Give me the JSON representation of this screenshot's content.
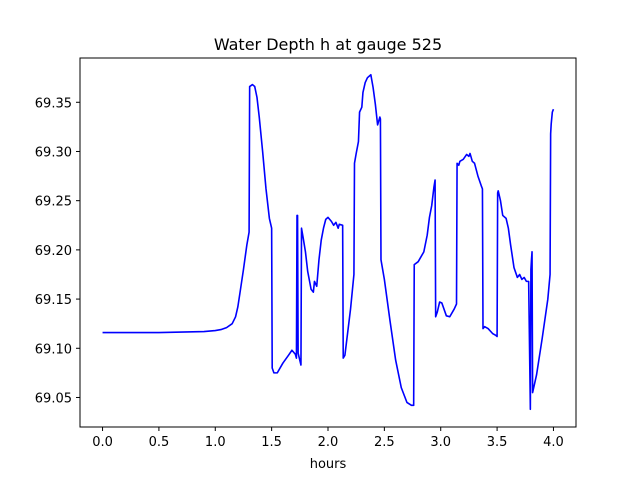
{
  "chart_data": {
    "type": "line",
    "title": "Water Depth h at gauge 525",
    "xlabel": "hours",
    "ylabel": "",
    "xlim": [
      -0.2,
      4.2
    ],
    "ylim": [
      69.02,
      69.395
    ],
    "xticks": [
      0.0,
      0.5,
      1.0,
      1.5,
      2.0,
      2.5,
      3.0,
      3.5,
      4.0
    ],
    "xtick_labels": [
      "0.0",
      "0.5",
      "1.0",
      "1.5",
      "2.0",
      "2.5",
      "3.0",
      "3.5",
      "4.0"
    ],
    "yticks": [
      69.05,
      69.1,
      69.15,
      69.2,
      69.25,
      69.3,
      69.35
    ],
    "ytick_labels": [
      "69.05",
      "69.10",
      "69.15",
      "69.20",
      "69.25",
      "69.30",
      "69.35"
    ],
    "grid": false,
    "legend": "none",
    "series": [
      {
        "color": "#0000ff",
        "points": [
          [
            0.0,
            69.116
          ],
          [
            0.5,
            69.116
          ],
          [
            0.9,
            69.117
          ],
          [
            1.0,
            69.118
          ],
          [
            1.05,
            69.119
          ],
          [
            1.1,
            69.121
          ],
          [
            1.15,
            69.125
          ],
          [
            1.18,
            69.132
          ],
          [
            1.2,
            69.142
          ],
          [
            1.22,
            69.157
          ],
          [
            1.25,
            69.18
          ],
          [
            1.28,
            69.205
          ],
          [
            1.3,
            69.218
          ],
          [
            1.305,
            69.366
          ],
          [
            1.33,
            69.368
          ],
          [
            1.35,
            69.366
          ],
          [
            1.37,
            69.355
          ],
          [
            1.39,
            69.335
          ],
          [
            1.42,
            69.3
          ],
          [
            1.45,
            69.262
          ],
          [
            1.48,
            69.232
          ],
          [
            1.5,
            69.222
          ],
          [
            1.505,
            69.08
          ],
          [
            1.52,
            69.075
          ],
          [
            1.55,
            69.075
          ],
          [
            1.6,
            69.085
          ],
          [
            1.65,
            69.093
          ],
          [
            1.68,
            69.098
          ],
          [
            1.71,
            69.094
          ],
          [
            1.72,
            69.09
          ],
          [
            1.725,
            69.235
          ],
          [
            1.73,
            69.235
          ],
          [
            1.735,
            69.095
          ],
          [
            1.76,
            69.083
          ],
          [
            1.765,
            69.222
          ],
          [
            1.78,
            69.212
          ],
          [
            1.8,
            69.198
          ],
          [
            1.82,
            69.178
          ],
          [
            1.85,
            69.16
          ],
          [
            1.87,
            69.157
          ],
          [
            1.88,
            69.168
          ],
          [
            1.9,
            69.163
          ],
          [
            1.92,
            69.19
          ],
          [
            1.94,
            69.21
          ],
          [
            1.96,
            69.222
          ],
          [
            1.98,
            69.231
          ],
          [
            2.0,
            69.233
          ],
          [
            2.03,
            69.229
          ],
          [
            2.05,
            69.225
          ],
          [
            2.07,
            69.228
          ],
          [
            2.09,
            69.222
          ],
          [
            2.1,
            69.226
          ],
          [
            2.13,
            69.225
          ],
          [
            2.135,
            69.09
          ],
          [
            2.15,
            69.093
          ],
          [
            2.2,
            69.14
          ],
          [
            2.23,
            69.175
          ],
          [
            2.235,
            69.288
          ],
          [
            2.25,
            69.298
          ],
          [
            2.27,
            69.31
          ],
          [
            2.28,
            69.34
          ],
          [
            2.3,
            69.345
          ],
          [
            2.31,
            69.36
          ],
          [
            2.33,
            69.37
          ],
          [
            2.35,
            69.375
          ],
          [
            2.38,
            69.378
          ],
          [
            2.4,
            69.365
          ],
          [
            2.42,
            69.348
          ],
          [
            2.44,
            69.327
          ],
          [
            2.46,
            69.335
          ],
          [
            2.465,
            69.333
          ],
          [
            2.47,
            69.19
          ],
          [
            2.5,
            69.17
          ],
          [
            2.55,
            69.128
          ],
          [
            2.6,
            69.088
          ],
          [
            2.65,
            69.06
          ],
          [
            2.7,
            69.045
          ],
          [
            2.74,
            69.042
          ],
          [
            2.76,
            69.042
          ],
          [
            2.765,
            69.185
          ],
          [
            2.8,
            69.188
          ],
          [
            2.85,
            69.198
          ],
          [
            2.88,
            69.215
          ],
          [
            2.9,
            69.233
          ],
          [
            2.92,
            69.245
          ],
          [
            2.94,
            69.264
          ],
          [
            2.95,
            69.271
          ],
          [
            2.955,
            69.132
          ],
          [
            2.97,
            69.137
          ],
          [
            2.99,
            69.147
          ],
          [
            3.01,
            69.146
          ],
          [
            3.05,
            69.133
          ],
          [
            3.08,
            69.132
          ],
          [
            3.12,
            69.14
          ],
          [
            3.14,
            69.145
          ],
          [
            3.145,
            69.288
          ],
          [
            3.16,
            69.286
          ],
          [
            3.17,
            69.29
          ],
          [
            3.2,
            69.292
          ],
          [
            3.23,
            69.297
          ],
          [
            3.25,
            69.295
          ],
          [
            3.26,
            69.298
          ],
          [
            3.28,
            69.29
          ],
          [
            3.3,
            69.288
          ],
          [
            3.33,
            69.275
          ],
          [
            3.36,
            69.265
          ],
          [
            3.37,
            69.262
          ],
          [
            3.375,
            69.12
          ],
          [
            3.39,
            69.122
          ],
          [
            3.42,
            69.12
          ],
          [
            3.46,
            69.115
          ],
          [
            3.49,
            69.113
          ],
          [
            3.5,
            69.112
          ],
          [
            3.505,
            69.258
          ],
          [
            3.51,
            69.26
          ],
          [
            3.53,
            69.25
          ],
          [
            3.55,
            69.235
          ],
          [
            3.58,
            69.232
          ],
          [
            3.6,
            69.222
          ],
          [
            3.62,
            69.205
          ],
          [
            3.65,
            69.182
          ],
          [
            3.68,
            69.172
          ],
          [
            3.7,
            69.175
          ],
          [
            3.72,
            69.17
          ],
          [
            3.74,
            69.172
          ],
          [
            3.76,
            69.168
          ],
          [
            3.78,
            69.168
          ],
          [
            3.795,
            69.038
          ],
          [
            3.8,
            69.18
          ],
          [
            3.805,
            69.19
          ],
          [
            3.81,
            69.198
          ],
          [
            3.815,
            69.055
          ],
          [
            3.85,
            69.073
          ],
          [
            3.9,
            69.11
          ],
          [
            3.95,
            69.15
          ],
          [
            3.97,
            69.175
          ],
          [
            3.975,
            69.318
          ],
          [
            3.98,
            69.328
          ],
          [
            3.99,
            69.34
          ],
          [
            4.0,
            69.343
          ]
        ]
      }
    ]
  }
}
